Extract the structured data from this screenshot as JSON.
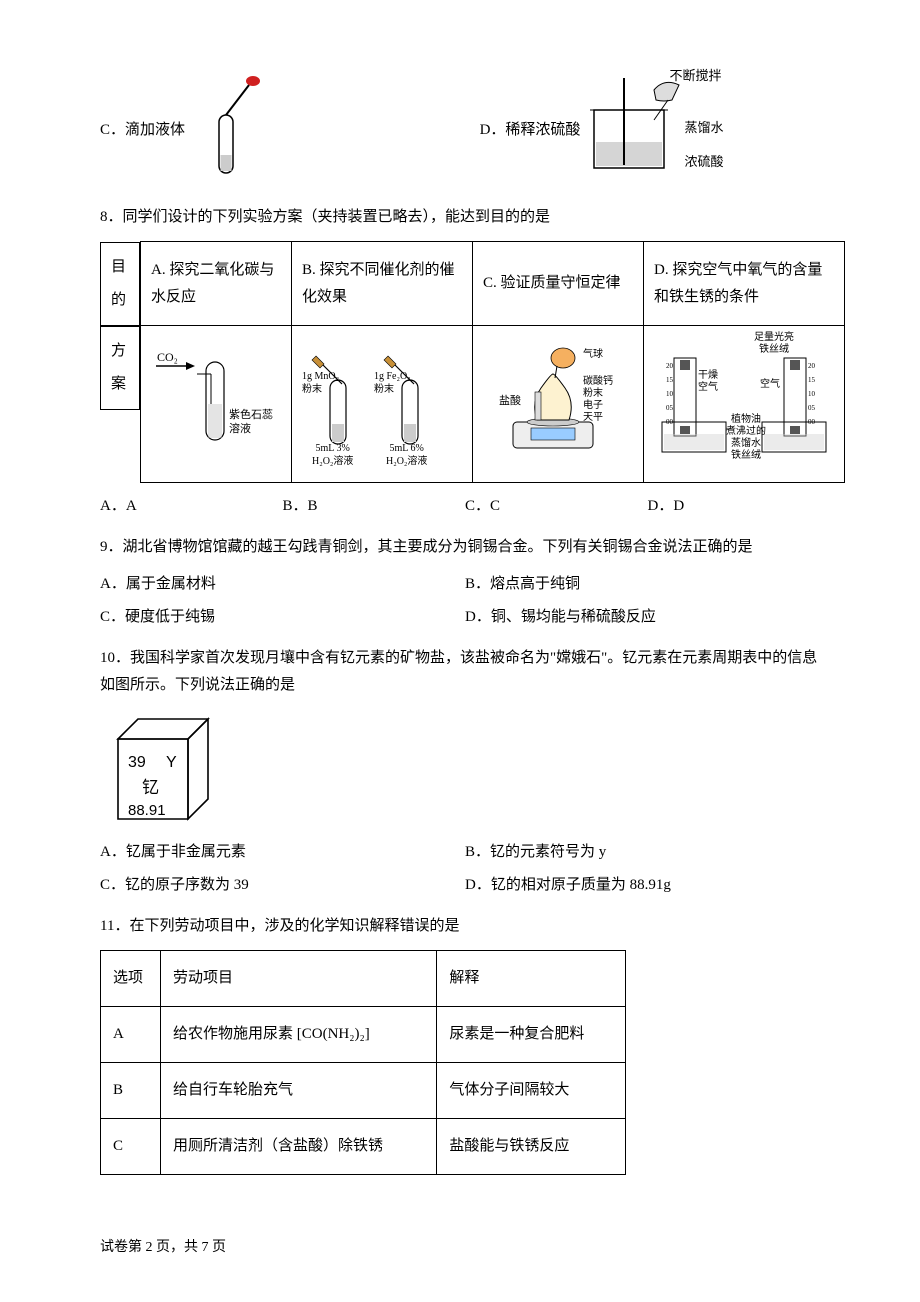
{
  "q7": {
    "optC": "C．滴加液体",
    "optD": "D．稀释浓硫酸",
    "figD": {
      "label1": "不断搅拌",
      "label2": "蒸馏水",
      "label3": "浓硫酸"
    }
  },
  "q8": {
    "text": "8．同学们设计的下列实验方案（夹持装置已略去），能达到目的的是",
    "row1label": "目的",
    "row2label": "方案",
    "A": "A. 探究二氧化碳与水反应",
    "B": "B. 探究不同催化剂的催化效果",
    "C": "C. 验证质量守恒定律",
    "D": "D. 探究空气中氧气的含量和铁生锈的条件",
    "figA": {
      "co2": "CO₂",
      "label": "紫色石蕊溶液"
    },
    "figB": {
      "t1a": "1g MnO₂",
      "t1b": "粉末",
      "t2a": "1g Fe₂O₃",
      "t2b": "粉末",
      "b1a": "5mL 3%",
      "b1b": "H₂O₂溶液",
      "b2a": "5mL 6%",
      "b2b": "H₂O₂溶液"
    },
    "figC": {
      "l1": "盐酸",
      "r1": "气球",
      "r2": "碳酸钙",
      "r3": "粉末",
      "r4": "电子",
      "r5": "天平"
    },
    "figD": {
      "t1": "足量光亮",
      "t2": "铁丝绒",
      "l1": "干燥",
      "l2": "空气",
      "r1": "空气",
      "s20": "20",
      "s15": "15",
      "s10": "10",
      "s05": "05",
      "s00": "00",
      "b1": "植物油",
      "b2": "煮沸过的",
      "b3": "蒸馏水",
      "b4": "铁丝绒"
    },
    "ansA": "A．A",
    "ansB": "B．B",
    "ansC": "C．C",
    "ansD": "D．D"
  },
  "q9": {
    "text": "9．湖北省博物馆馆藏的越王勾践青铜剑，其主要成分为铜锡合金。下列有关铜锡合金说法正确的是",
    "A": "A．属于金属材料",
    "B": "B．熔点高于纯铜",
    "C": "C．硬度低于纯锡",
    "D": "D．铜、锡均能与稀硫酸反应"
  },
  "q10": {
    "text1": "10．我国科学家首次发现月壤中含有钇元素的矿物盐，该盐被命名为\"嫦娥石\"。钇元素在元素周期表中的信息如图所示。下列说法正确的是",
    "box": {
      "num": "39",
      "sym": "Y",
      "name": "钇",
      "mass": "88.91"
    },
    "A": "A．钇属于非金属元素",
    "B": "B．钇的元素符号为 y",
    "C": "C．钇的原子序数为 39",
    "D": "D．钇的相对原子质量为 88.91g"
  },
  "q11": {
    "text": "11．在下列劳动项目中，涉及的化学知识解释错误的是",
    "h1": "选项",
    "h2": "劳动项目",
    "h3": "解释",
    "rA": {
      "opt": "A",
      "proj": "给农作物施用尿素 [CO(NH₂)₂]",
      "exp": "尿素是一种复合肥料"
    },
    "rB": {
      "opt": "B",
      "proj": "给自行车轮胎充气",
      "exp": "气体分子间隔较大"
    },
    "rC": {
      "opt": "C",
      "proj": "用厕所清洁剂（含盐酸）除铁锈",
      "exp": "盐酸能与铁锈反应"
    }
  },
  "footer": "试卷第 2 页，共 7 页",
  "colors": {
    "text": "#000000",
    "border": "#000000",
    "bg": "#ffffff",
    "dropper_tip": "#d02020"
  }
}
